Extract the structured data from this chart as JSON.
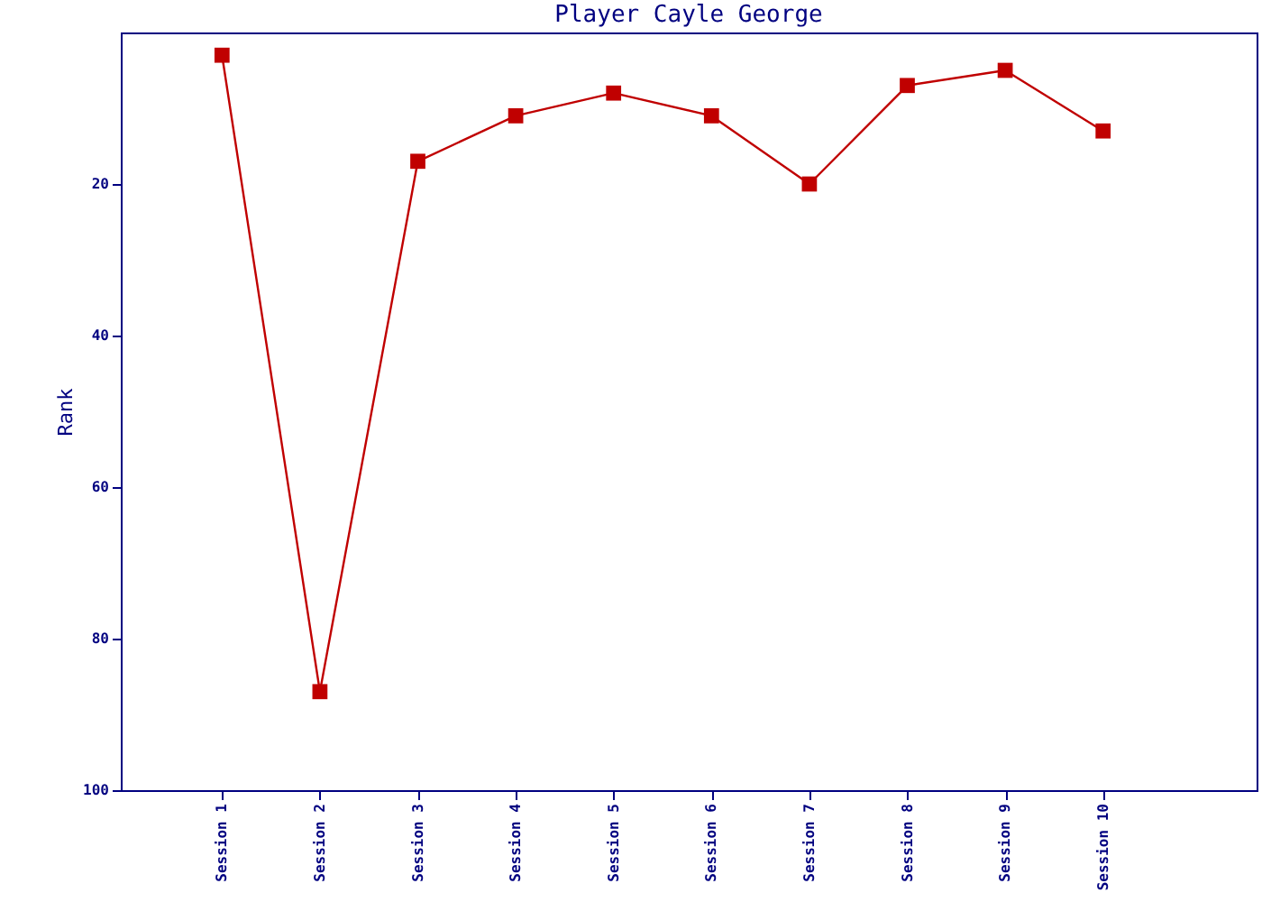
{
  "chart_data": {
    "type": "line",
    "title": "Player Cayle George",
    "ylabel": "Rank",
    "categories": [
      "Session 1",
      "Session 2",
      "Session 3",
      "Session 4",
      "Session 5",
      "Session 6",
      "Session 7",
      "Session 8",
      "Session 9",
      "Session 10"
    ],
    "series": [
      {
        "color": "#c00000",
        "values": [
          3,
          87,
          17,
          11,
          8,
          11,
          20,
          7,
          5,
          13
        ]
      }
    ],
    "ylim": [
      100,
      0
    ],
    "yticks": [
      20,
      40,
      60,
      80,
      100
    ],
    "grid": false,
    "marker": "square",
    "line_style": "solid"
  }
}
